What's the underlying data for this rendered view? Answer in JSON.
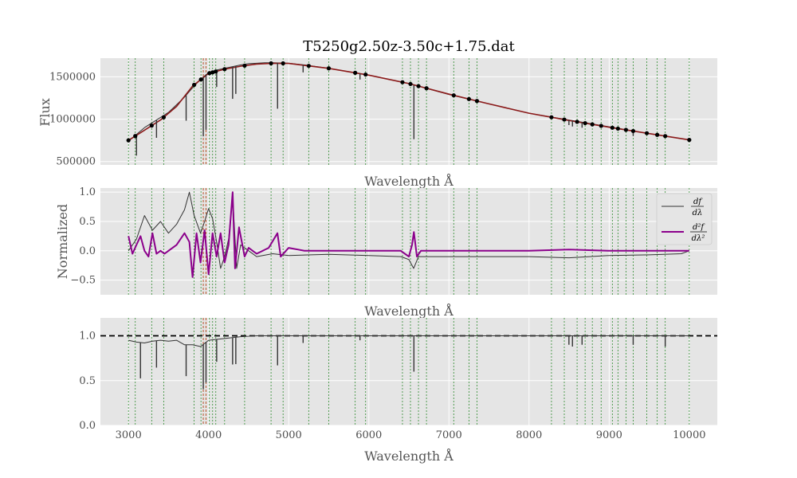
{
  "chart_data": {
    "type": "line",
    "title": "T5250g2.50z-3.50c+1.75.dat",
    "x_ticks": [
      3000,
      4000,
      5000,
      6000,
      7000,
      8000,
      9000,
      10000
    ],
    "xlim": [
      2650,
      10350
    ],
    "xlabel": "Wavelength Å",
    "continuum_markers": [
      3000,
      3085,
      3290,
      3440,
      3820,
      3905,
      4010,
      4050,
      4090,
      4200,
      4450,
      4780,
      4930,
      5250,
      5500,
      5830,
      5960,
      6420,
      6520,
      6620,
      6720,
      7060,
      7250,
      7350,
      8280,
      8440,
      8600,
      8700,
      8790,
      8900,
      9040,
      9110,
      9210,
      9300,
      9470,
      9600,
      9700,
      10000
    ],
    "hk_lines": [
      3934,
      3968
    ],
    "panels": [
      {
        "id": "flux",
        "ylabel": "Flux",
        "ylim": [
          460000,
          1720000
        ],
        "y_ticks": [
          500000,
          1000000,
          1500000
        ],
        "series": [
          {
            "role": "observed",
            "color": "#333333",
            "x": [
              3000,
              3100,
              3200,
              3300,
              3400,
              3500,
              3600,
              3700,
              3800,
              3900,
              4000,
              4100,
              4200,
              4300,
              4400,
              4500,
              4600,
              4700,
              4800,
              5000,
              5200,
              5500,
              6000,
              6500,
              7000,
              7500,
              8000,
              8500,
              9000,
              9500,
              10000
            ],
            "y": [
              740000,
              820000,
              900000,
              960000,
              1020000,
              1080000,
              1170000,
              1260000,
              1370000,
              1470000,
              1550000,
              1580000,
              1600000,
              1620000,
              1640000,
              1655000,
              1660000,
              1665000,
              1665000,
              1660000,
              1640000,
              1600000,
              1520000,
              1420000,
              1290000,
              1180000,
              1070000,
              990000,
              910000,
              830000,
              755000
            ]
          },
          {
            "role": "continuum",
            "color": "#8b1a1a",
            "x": [
              3000,
              3200,
              3400,
              3600,
              3800,
              4000,
              4200,
              4400,
              4600,
              4800,
              5000,
              5500,
              6000,
              6500,
              7000,
              7500,
              8000,
              8500,
              9000,
              9500,
              10000
            ],
            "y": [
              750000,
              870000,
              990000,
              1150000,
              1390000,
              1540000,
              1590000,
              1625000,
              1650000,
              1660000,
              1658000,
              1600000,
              1520000,
              1420000,
              1295000,
              1180000,
              1070000,
              985000,
              905000,
              830000,
              755000
            ]
          }
        ],
        "absorption_lines": [
          {
            "x": 3100,
            "depth": 250000
          },
          {
            "x": 3350,
            "depth": 210000
          },
          {
            "x": 3720,
            "depth": 300000
          },
          {
            "x": 3934,
            "depth": 700000
          },
          {
            "x": 3968,
            "depth": 650000
          },
          {
            "x": 4101,
            "depth": 200000
          },
          {
            "x": 4300,
            "depth": 380000
          },
          {
            "x": 4340,
            "depth": 330000
          },
          {
            "x": 4861,
            "depth": 540000
          },
          {
            "x": 5180,
            "depth": 90000
          },
          {
            "x": 5890,
            "depth": 70000
          },
          {
            "x": 6563,
            "depth": 640000
          },
          {
            "x": 8498,
            "depth": 60000
          },
          {
            "x": 8542,
            "depth": 70000
          },
          {
            "x": 8662,
            "depth": 65000
          },
          {
            "x": 9300,
            "depth": 60000
          }
        ]
      },
      {
        "id": "derivatives",
        "ylabel": "Normalized",
        "ylim": [
          -0.75,
          1.07
        ],
        "y_ticks": [
          -0.5,
          0.0,
          0.5,
          1.0
        ],
        "legend_position": "upper right",
        "series": [
          {
            "name": "df/dλ",
            "color": "#333333",
            "x": [
              3000,
              3100,
              3200,
              3300,
              3400,
              3500,
              3600,
              3700,
              3760,
              3820,
              3900,
              3950,
              4000,
              4050,
              4100,
              4150,
              4200,
              4250,
              4300,
              4350,
              4400,
              4500,
              4600,
              4800,
              5000,
              5500,
              6000,
              6400,
              6500,
              6560,
              6620,
              6700,
              7000,
              8000,
              8500,
              9000,
              9500,
              9900,
              10000
            ],
            "y": [
              0.0,
              0.2,
              0.6,
              0.35,
              0.5,
              0.3,
              0.45,
              0.7,
              1.0,
              0.6,
              0.3,
              0.5,
              0.72,
              0.55,
              0.15,
              -0.3,
              -0.1,
              0.2,
              0.95,
              -0.3,
              0.1,
              0.0,
              -0.1,
              -0.05,
              -0.08,
              -0.06,
              -0.08,
              -0.1,
              -0.15,
              -0.3,
              -0.1,
              -0.1,
              -0.1,
              -0.1,
              -0.12,
              -0.08,
              -0.07,
              -0.05,
              0.0
            ]
          },
          {
            "name": "d²f/dλ²",
            "color": "#8b008b",
            "x": [
              3000,
              3050,
              3100,
              3150,
              3200,
              3250,
              3300,
              3350,
              3400,
              3450,
              3500,
              3600,
              3700,
              3760,
              3800,
              3850,
              3900,
              3950,
              4000,
              4050,
              4100,
              4150,
              4200,
              4250,
              4300,
              4330,
              4380,
              4450,
              4500,
              4600,
              4750,
              4860,
              4900,
              5000,
              5200,
              5500,
              6000,
              6400,
              6500,
              6540,
              6563,
              6600,
              6650,
              7000,
              8000,
              8500,
              9000,
              9500,
              10000
            ],
            "y": [
              0.25,
              -0.05,
              0.1,
              0.25,
              0.0,
              -0.1,
              0.3,
              -0.05,
              0.0,
              -0.05,
              0.0,
              0.1,
              0.3,
              0.15,
              -0.45,
              0.3,
              -0.2,
              0.35,
              -0.4,
              0.3,
              -0.1,
              0.3,
              -0.2,
              0.1,
              1.0,
              -0.3,
              0.4,
              -0.1,
              0.05,
              -0.05,
              0.05,
              0.3,
              -0.1,
              0.05,
              0.0,
              0.0,
              0.0,
              0.0,
              -0.1,
              0.1,
              0.32,
              -0.1,
              0.0,
              0.0,
              0.0,
              0.02,
              0.0,
              0.0,
              0.0
            ]
          }
        ]
      },
      {
        "id": "normalized",
        "ylim": [
          0.0,
          1.2
        ],
        "y_ticks": [
          0.0,
          0.5,
          1.0
        ],
        "reference_line": 1.0,
        "series": [
          {
            "role": "normalized-flux",
            "color": "#333333",
            "x": [
              3000,
              3100,
              3200,
              3300,
              3400,
              3500,
              3600,
              3700,
              3800,
              3900,
              4000,
              4200,
              4400,
              4600,
              5000,
              6000,
              7000,
              8000,
              9000,
              10000
            ],
            "y": [
              0.95,
              0.93,
              0.92,
              0.94,
              0.95,
              0.94,
              0.95,
              0.9,
              0.9,
              0.88,
              0.95,
              0.97,
              0.99,
              1.0,
              1.0,
              1.0,
              1.0,
              1.0,
              1.0,
              1.0
            ]
          }
        ],
        "absorption_lines": [
          {
            "x": 3150,
            "depth": 0.4
          },
          {
            "x": 3350,
            "depth": 0.3
          },
          {
            "x": 3720,
            "depth": 0.35
          },
          {
            "x": 3934,
            "depth": 0.5
          },
          {
            "x": 3968,
            "depth": 0.45
          },
          {
            "x": 4101,
            "depth": 0.25
          },
          {
            "x": 4300,
            "depth": 0.3
          },
          {
            "x": 4340,
            "depth": 0.3
          },
          {
            "x": 4861,
            "depth": 0.33
          },
          {
            "x": 5180,
            "depth": 0.08
          },
          {
            "x": 5890,
            "depth": 0.05
          },
          {
            "x": 6563,
            "depth": 0.4
          },
          {
            "x": 8498,
            "depth": 0.1
          },
          {
            "x": 8542,
            "depth": 0.12
          },
          {
            "x": 8662,
            "depth": 0.1
          },
          {
            "x": 9300,
            "depth": 0.1
          },
          {
            "x": 9700,
            "depth": 0.12
          }
        ]
      }
    ]
  }
}
